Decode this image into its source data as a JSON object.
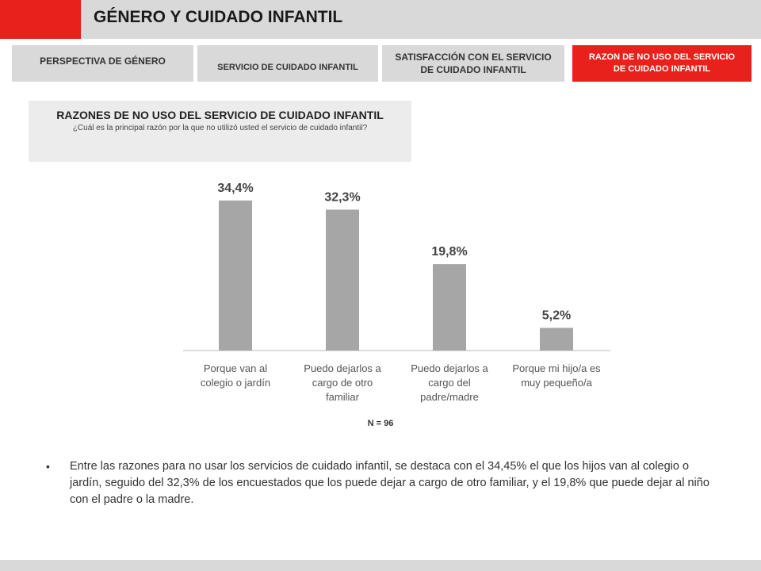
{
  "header": {
    "title": "GÉNERO Y CUIDADO INFANTIL",
    "accent_color": "#e8211d"
  },
  "nav": {
    "tabs": [
      {
        "lines": [
          "PERSPECTIVA DE GÉNERO"
        ],
        "active": false
      },
      {
        "lines": [
          "SERVICIO DE CUIDADO INFANTIL"
        ],
        "active": false
      },
      {
        "lines": [
          "SATISFACCIÓN CON EL SERVICIO",
          "DE CUIDADO INFANTIL"
        ],
        "active": false
      },
      {
        "lines": [
          "RAZON DE NO USO DEL SERVICIO",
          "DE CUIDADO INFANTIL"
        ],
        "active": true
      }
    ]
  },
  "question": {
    "title": "RAZONES DE NO USO DEL SERVICIO DE CUIDADO INFANTIL",
    "subtitle": "¿Cuál es la principal razón por la que no utilizó usted el servicio de cuidado infantil?"
  },
  "chart_data": {
    "type": "bar",
    "categories": [
      [
        "Porque van al",
        "colegio o jardín"
      ],
      [
        "Puedo dejarlos a",
        "cargo de otro",
        "familiar"
      ],
      [
        "Puedo dejarlos a",
        "cargo del",
        "padre/madre"
      ],
      [
        "Porque mi hijo/a es",
        "muy pequeño/a"
      ]
    ],
    "values": [
      34.4,
      32.3,
      19.8,
      5.2
    ],
    "data_labels": [
      "34,4%",
      "32,3%",
      "19,8%",
      "5,2%"
    ],
    "ylim": [
      0,
      40
    ],
    "grid": false,
    "bar_color": "#a6a6a6",
    "note": "N = 96"
  },
  "summary": {
    "text": "Entre las razones para no usar los servicios de cuidado infantil, se destaca con el  34,45% el que los hijos van al colegio o jardín, seguido del 32,3% de los encuestados que los puede dejar a cargo de otro familiar, y el 19,8% que puede dejar al niño con el padre o la madre."
  }
}
